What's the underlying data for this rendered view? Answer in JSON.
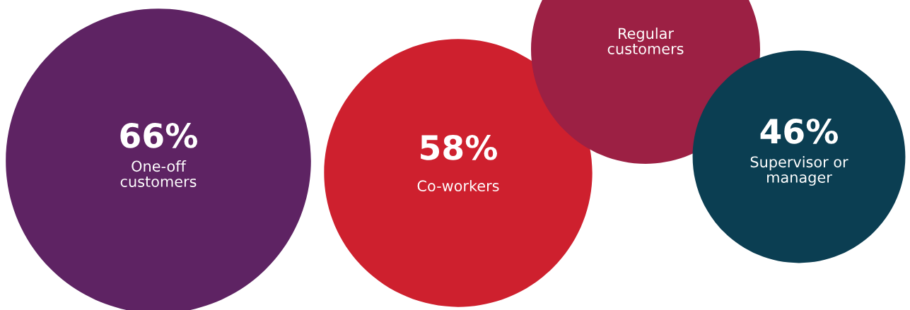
{
  "chart_data": {
    "type": "other",
    "categories": [
      "One-off\ncustomers",
      "Co-workers",
      "Regular\ncustomers",
      "Supervisor or\nmanager"
    ],
    "values": [
      66,
      58,
      null,
      46
    ],
    "value_labels": [
      "66%",
      "58%",
      null,
      "46%"
    ],
    "colors": [
      "#5e2363",
      "#ce202e",
      "#9c2044",
      "#0b3e52"
    ]
  }
}
